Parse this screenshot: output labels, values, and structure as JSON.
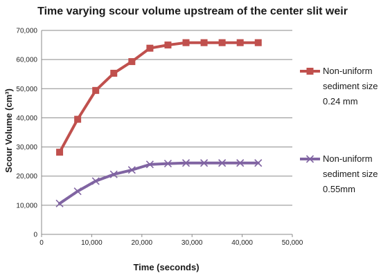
{
  "chart_data": {
    "type": "line",
    "title": "Time varying scour volume upstream of the center slit weir",
    "xlabel": "Time (seconds)",
    "ylabel": "Scour Volume (cm³)",
    "xlim": [
      0,
      50000
    ],
    "ylim": [
      0,
      70000
    ],
    "x_ticks": [
      "0",
      "10,000",
      "20,000",
      "30,000",
      "40,000",
      "50,000"
    ],
    "y_ticks": [
      "0",
      "10,000",
      "20,000",
      "30,000",
      "40,000",
      "50,000",
      "60,000",
      "70,000"
    ],
    "grid": "horizontal",
    "legend_position": "right",
    "series": [
      {
        "name_lines": [
          "Non-uniform",
          "sediment size",
          "0.24 mm"
        ],
        "color": "#c0504d",
        "marker": "square",
        "x": [
          3600,
          7200,
          10800,
          14400,
          18000,
          21600,
          25200,
          28800,
          32400,
          36000,
          39600,
          43200
        ],
        "y": [
          28200,
          39500,
          49400,
          55300,
          59300,
          63900,
          65000,
          65800,
          65800,
          65800,
          65800,
          65800
        ]
      },
      {
        "name_lines": [
          "Non-uniform",
          "sediment size",
          "0.55mm"
        ],
        "color": "#8064a2",
        "marker": "x",
        "x": [
          3600,
          7200,
          10800,
          14400,
          18000,
          21600,
          25200,
          28800,
          32400,
          36000,
          39600,
          43200
        ],
        "y": [
          10600,
          14800,
          18300,
          20600,
          22100,
          24000,
          24300,
          24500,
          24500,
          24500,
          24500,
          24500
        ]
      }
    ]
  }
}
